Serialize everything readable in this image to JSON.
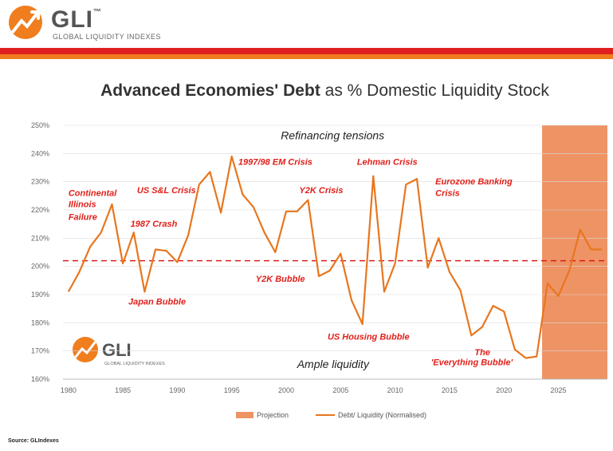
{
  "header": {
    "logo_title": "GLI",
    "logo_tm": "™",
    "logo_subtitle": "GLOBAL LIQUIDITY INDEXES"
  },
  "colors": {
    "red": "#e02020",
    "orange": "#f07d1e",
    "line": "#e8761e",
    "projection": "#ee9364",
    "annotation": "#e0201a"
  },
  "source": "Source: GLIndexes",
  "chart_data": {
    "type": "line",
    "title_bold": "Advanced Economies' Debt",
    "title_rest": " as % Domestic Liquidity Stock",
    "xlabel": "",
    "ylabel": "",
    "xlim": [
      1979.5,
      2029.5
    ],
    "ylim": [
      160,
      250
    ],
    "x_ticks": [
      1980,
      1985,
      1990,
      1995,
      2000,
      2005,
      2010,
      2015,
      2020,
      2025
    ],
    "y_ticks": [
      "160%",
      "170%",
      "180%",
      "190%",
      "200%",
      "210%",
      "220%",
      "230%",
      "240%",
      "250%"
    ],
    "y_tick_values": [
      160,
      170,
      180,
      190,
      200,
      210,
      220,
      230,
      240,
      250
    ],
    "series": [
      {
        "name": "Debt/ Liquidity (Normalised)",
        "x": [
          1980,
          1981,
          1982,
          1983,
          1984,
          1985,
          1986,
          1987,
          1988,
          1989,
          1990,
          1991,
          1992,
          1993,
          1994,
          1995,
          1996,
          1997,
          1998,
          1999,
          2000,
          2001,
          2002,
          2003,
          2004,
          2005,
          2006,
          2007,
          2008,
          2009,
          2010,
          2011,
          2012,
          2013,
          2014,
          2015,
          2016,
          2017,
          2018,
          2019,
          2020,
          2021,
          2022,
          2023,
          2024,
          2025,
          2026,
          2027,
          2028,
          2029
        ],
        "values": [
          191,
          198,
          207,
          212,
          222,
          201,
          212,
          191,
          206,
          205.5,
          201.5,
          211,
          229,
          233.5,
          219,
          239,
          225.5,
          221,
          212,
          205,
          219.5,
          219.5,
          223.5,
          196.5,
          198.5,
          204.5,
          188,
          179.5,
          232,
          191,
          201,
          229,
          231,
          199.5,
          210,
          198,
          191.5,
          175.5,
          178.5,
          186,
          184,
          170.5,
          167.5,
          168,
          194,
          189.5,
          198.5,
          213,
          206,
          206
        ]
      }
    ],
    "reference_line": {
      "value": 202,
      "style": "dashed"
    },
    "projection": {
      "from": 2023.5,
      "to": 2029.5,
      "name": "Projection"
    },
    "legend": [
      "Projection",
      "Debt/ Liquidity (Normalised)"
    ],
    "annotations": [
      {
        "text": "Refinancing tensions",
        "x": 1999.5,
        "y": 245,
        "style": "black"
      },
      {
        "text": "Ample liquidity",
        "x": 2001,
        "y": 164,
        "style": "black"
      },
      {
        "text": "Continental",
        "x": 1980,
        "y": 225,
        "style": "red"
      },
      {
        "text": "Illinois",
        "x": 1980,
        "y": 221,
        "style": "red"
      },
      {
        "text": "Failure",
        "x": 1980,
        "y": 216.5,
        "style": "red"
      },
      {
        "text": "US S&L Crisis",
        "x": 1986.3,
        "y": 226,
        "style": "red"
      },
      {
        "text": "1987 Crash",
        "x": 1985.7,
        "y": 214,
        "style": "red"
      },
      {
        "text": "Japan Bubble",
        "x": 1985.5,
        "y": 186.5,
        "style": "red"
      },
      {
        "text": "1997/98 EM Crisis",
        "x": 1995.6,
        "y": 236,
        "style": "red"
      },
      {
        "text": "Y2K Crisis",
        "x": 2001.2,
        "y": 226,
        "style": "red"
      },
      {
        "text": "Y2K Bubble",
        "x": 1997.2,
        "y": 194.5,
        "style": "red"
      },
      {
        "text": "Lehman Crisis",
        "x": 2006.5,
        "y": 236,
        "style": "red"
      },
      {
        "text": "US Housing Bubble",
        "x": 2003.8,
        "y": 174,
        "style": "red"
      },
      {
        "text": "Eurozone Banking",
        "x": 2013.7,
        "y": 229,
        "style": "red"
      },
      {
        "text": "Crisis",
        "x": 2013.7,
        "y": 225,
        "style": "red"
      },
      {
        "text": "The",
        "x": 2017.3,
        "y": 168.5,
        "style": "red"
      },
      {
        "text": "'Everything Bubble'",
        "x": 2013.3,
        "y": 165,
        "style": "red"
      }
    ],
    "watermark": {
      "title": "GLI",
      "subtitle": "GLOBAL LIQUIDITY INDEXES"
    }
  }
}
